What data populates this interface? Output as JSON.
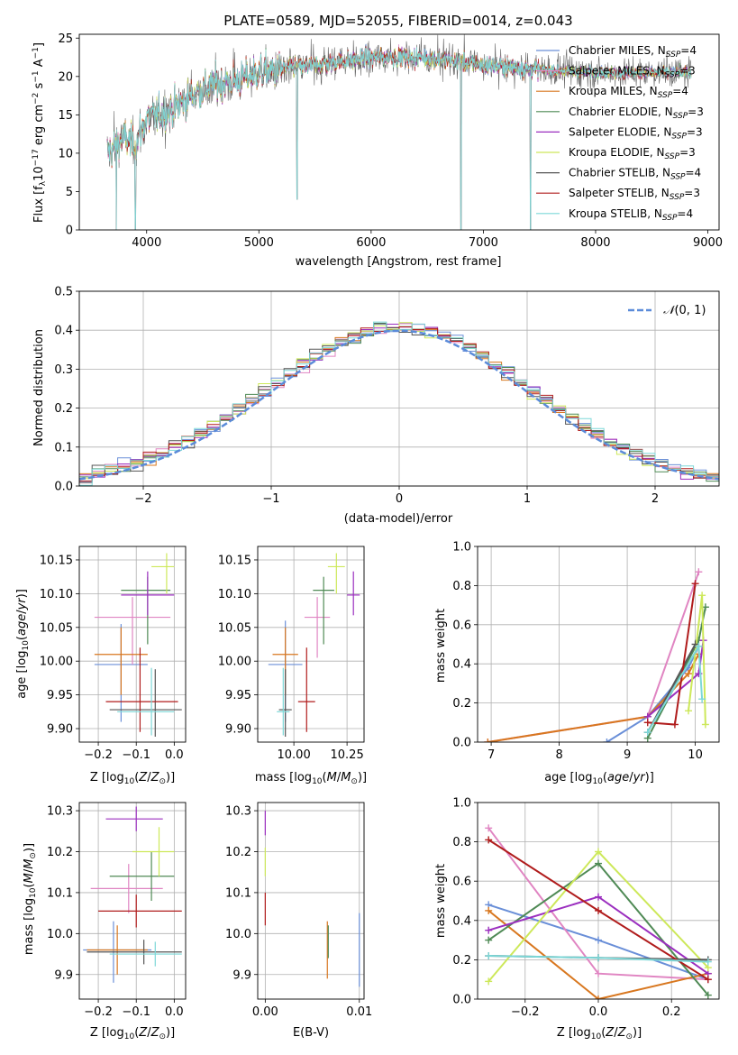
{
  "colors": [
    "#6a8fd8",
    "#e085c2",
    "#d8771f",
    "#4f8a55",
    "#9b2fbf",
    "#cde85a",
    "#555555",
    "#b01c1c",
    "#7dd8d8"
  ],
  "chart_data": [
    {
      "id": "spectrum",
      "type": "line",
      "title": "PLATE=0589, MJD=52055, FIBERID=0014, z=0.043",
      "xlabel": "wavelength [Angstrom, rest frame]",
      "ylabel": "Flux [f_λ10^-17 erg cm^-2 s^-1 A^-1]",
      "xlim": [
        3400,
        9100
      ],
      "ylim": [
        0,
        25.5
      ],
      "xticks": [
        4000,
        5000,
        6000,
        7000,
        8000,
        9000
      ],
      "yticks": [
        0,
        5,
        10,
        15,
        20,
        25
      ],
      "grid": false,
      "legend_position": "right",
      "legend": [
        {
          "label": "Chabrier MILES, N_SSP=4",
          "color": "#6a8fd8"
        },
        {
          "label": "Salpeter MILES, N_SSP=3",
          "color": "#e085c2"
        },
        {
          "label": "Kroupa MILES, N_SSP=4",
          "color": "#d8771f"
        },
        {
          "label": "Chabrier ELODIE, N_SSP=3",
          "color": "#4f8a55"
        },
        {
          "label": "Salpeter ELODIE, N_SSP=3",
          "color": "#9b2fbf"
        },
        {
          "label": "Kroupa ELODIE, N_SSP=3",
          "color": "#cde85a"
        },
        {
          "label": "Chabrier STELIB, N_SSP=4",
          "color": "#555555"
        },
        {
          "label": "Salpeter STELIB, N_SSP=3",
          "color": "#b01c1c"
        },
        {
          "label": "Kroupa STELIB, N_SSP=4",
          "color": "#7dd8d8"
        }
      ],
      "continuum": {
        "x": [
          3650,
          3800,
          3900,
          4000,
          4200,
          4400,
          4600,
          4800,
          5000,
          5200,
          5500,
          6000,
          6500,
          7000,
          7400,
          8000,
          8500,
          8850
        ],
        "y": [
          10,
          12,
          11,
          14.5,
          15.5,
          17.5,
          19,
          19.5,
          20.5,
          21,
          21.5,
          22.5,
          22.5,
          21.5,
          21,
          20.5,
          20.5,
          20.5
        ]
      },
      "data_range": [
        3650,
        8850
      ],
      "absorption_dips": [
        {
          "x": 3730,
          "y": 0
        },
        {
          "x": 3900,
          "y": 0
        },
        {
          "x": 5340,
          "y": 4
        },
        {
          "x": 6800,
          "y": 0
        },
        {
          "x": 7420,
          "y": 0
        }
      ]
    },
    {
      "id": "residuals",
      "type": "histogram",
      "xlabel": "(data-model)/error",
      "ylabel": "Normed distribution",
      "xlim": [
        -2.5,
        2.5
      ],
      "ylim": [
        0,
        0.5
      ],
      "xticks": [
        -2,
        -1,
        0,
        1,
        2
      ],
      "yticks": [
        0,
        0.1,
        0.2,
        0.3,
        0.4,
        0.5
      ],
      "grid": true,
      "bin_width": 0.1,
      "legend": [
        {
          "label": "N(0,1)",
          "color": "#5b8bd9",
          "style": "dashed"
        }
      ],
      "legend_position": "upper right"
    },
    {
      "id": "age-vs-Z",
      "type": "errorbar",
      "xlabel": "Z [log10(Z/Z⊙)]",
      "ylabel": "age  [log10(age/yr)]",
      "xlim": [
        -0.25,
        0.03
      ],
      "ylim": [
        9.88,
        10.17
      ],
      "xticks": [
        -0.2,
        -0.1,
        0.0
      ],
      "yticks": [
        9.9,
        9.95,
        10.0,
        10.05,
        10.1,
        10.15
      ],
      "grid": true,
      "points": [
        {
          "x": -0.14,
          "xerr": [
            0.07,
            0.07
          ],
          "y": 9.995,
          "yerr": [
            0.085,
            0.06
          ],
          "series": 0
        },
        {
          "x": -0.11,
          "xerr": [
            0.1,
            0.1
          ],
          "y": 10.065,
          "yerr": [
            0.07,
            0.03
          ],
          "series": 1
        },
        {
          "x": -0.14,
          "xerr": [
            0.07,
            0.07
          ],
          "y": 10.01,
          "yerr": [
            0.06,
            0.04
          ],
          "series": 2
        },
        {
          "x": -0.07,
          "xerr": [
            0.07,
            0.06
          ],
          "y": 10.105,
          "yerr": [
            0.08,
            0.02
          ],
          "series": 3
        },
        {
          "x": -0.07,
          "xerr": [
            0.07,
            0.07
          ],
          "y": 10.098,
          "yerr": [
            0.03,
            0.035
          ],
          "series": 4
        },
        {
          "x": -0.02,
          "xerr": [
            0.04,
            0.02
          ],
          "y": 10.14,
          "yerr": [
            0.04,
            0.02
          ],
          "series": 5
        },
        {
          "x": -0.05,
          "xerr": [
            0.12,
            0.07
          ],
          "y": 9.928,
          "yerr": [
            0.04,
            0.06
          ],
          "series": 6
        },
        {
          "x": -0.09,
          "xerr": [
            0.09,
            0.1
          ],
          "y": 9.94,
          "yerr": [
            0.045,
            0.08
          ],
          "series": 7
        },
        {
          "x": -0.06,
          "xerr": [
            0.09,
            0.06
          ],
          "y": 9.925,
          "yerr": [
            0.035,
            0.065
          ],
          "series": 8
        }
      ]
    },
    {
      "id": "age-vs-mass",
      "type": "errorbar",
      "xlabel": "mass [log10(M/M⊙)]",
      "xlim": [
        9.83,
        10.33
      ],
      "ylim": [
        9.88,
        10.17
      ],
      "xticks": [
        10.0,
        10.25
      ],
      "yticks": [
        9.9,
        9.95,
        10.0,
        10.05,
        10.1,
        10.15
      ],
      "grid": true,
      "points": [
        {
          "x": 9.96,
          "xerr": [
            0.08,
            0.08
          ],
          "y": 9.995,
          "yerr": [
            0.085,
            0.065
          ],
          "series": 0
        },
        {
          "x": 10.11,
          "xerr": [
            0.06,
            0.06
          ],
          "y": 10.065,
          "yerr": [
            0.06,
            0.03
          ],
          "series": 1
        },
        {
          "x": 9.96,
          "xerr": [
            0.06,
            0.06
          ],
          "y": 10.01,
          "yerr": [
            0.06,
            0.04
          ],
          "series": 2
        },
        {
          "x": 10.14,
          "xerr": [
            0.05,
            0.05
          ],
          "y": 10.105,
          "yerr": [
            0.08,
            0.02
          ],
          "series": 3
        },
        {
          "x": 10.28,
          "xerr": [
            0.03,
            0.03
          ],
          "y": 10.098,
          "yerr": [
            0.03,
            0.035
          ],
          "series": 4
        },
        {
          "x": 10.2,
          "xerr": [
            0.04,
            0.04
          ],
          "y": 10.14,
          "yerr": [
            0.04,
            0.02
          ],
          "series": 5
        },
        {
          "x": 9.96,
          "xerr": [
            0.03,
            0.03
          ],
          "y": 9.928,
          "yerr": [
            0.04,
            0.06
          ],
          "series": 6
        },
        {
          "x": 10.06,
          "xerr": [
            0.04,
            0.04
          ],
          "y": 9.94,
          "yerr": [
            0.045,
            0.08
          ],
          "series": 7
        },
        {
          "x": 9.95,
          "xerr": [
            0.03,
            0.03
          ],
          "y": 9.925,
          "yerr": [
            0.035,
            0.065
          ],
          "series": 8
        }
      ]
    },
    {
      "id": "weight-vs-age",
      "type": "line",
      "xlabel": "age  [log10(age/yr)]",
      "ylabel": "mass weight",
      "xlim": [
        6.8,
        10.35
      ],
      "ylim": [
        0,
        1.0
      ],
      "xticks": [
        7,
        8,
        9,
        10
      ],
      "yticks": [
        0,
        0.2,
        0.4,
        0.6,
        0.8,
        1.0
      ],
      "grid": true,
      "series": [
        {
          "x": [
            8.7,
            9.3,
            9.9,
            10.05
          ],
          "y": [
            0.0,
            0.13,
            0.38,
            0.49
          ],
          "color_index": 0
        },
        {
          "x": [
            6.95,
            9.3,
            10.05
          ],
          "y": [
            0.0,
            0.13,
            0.87
          ],
          "color_index": 1
        },
        {
          "x": [
            6.95,
            9.3,
            9.9,
            10.05
          ],
          "y": [
            0.0,
            0.13,
            0.35,
            0.45
          ],
          "color_index": 2
        },
        {
          "x": [
            9.3,
            10.05,
            10.15
          ],
          "y": [
            0.02,
            0.52,
            0.69
          ],
          "color_index": 3
        },
        {
          "x": [
            9.3,
            10.05,
            10.12
          ],
          "y": [
            0.13,
            0.35,
            0.52
          ],
          "color_index": 4
        },
        {
          "x": [
            9.9,
            10.1,
            10.15
          ],
          "y": [
            0.16,
            0.75,
            0.09
          ],
          "color_index": 5
        },
        {
          "x": [
            9.3,
            10.0
          ],
          "y": [
            0.05,
            0.5
          ],
          "color_index": 6
        },
        {
          "x": [
            9.3,
            9.7,
            10.0
          ],
          "y": [
            0.1,
            0.09,
            0.81
          ],
          "color_index": 7
        },
        {
          "x": [
            9.3,
            10.05,
            10.1
          ],
          "y": [
            0.05,
            0.49,
            0.22
          ],
          "color_index": 8
        }
      ]
    },
    {
      "id": "mass-vs-Z",
      "type": "errorbar",
      "xlabel": "Z [log10(Z/Z⊙)]",
      "ylabel": "mass [log10(M/M⊙)]",
      "xlim": [
        -0.25,
        0.03
      ],
      "ylim": [
        9.84,
        10.32
      ],
      "xticks": [
        -0.2,
        -0.1,
        0.0
      ],
      "yticks": [
        9.9,
        10.0,
        10.1,
        10.2,
        10.3
      ],
      "grid": true,
      "points": [
        {
          "x": -0.16,
          "xerr": [
            0.08,
            0.1
          ],
          "y": 9.96,
          "yerr": [
            0.08,
            0.07
          ],
          "series": 0
        },
        {
          "x": -0.12,
          "xerr": [
            0.1,
            0.09
          ],
          "y": 10.11,
          "yerr": [
            0.06,
            0.06
          ],
          "series": 1
        },
        {
          "x": -0.15,
          "xerr": [
            0.08,
            0.08
          ],
          "y": 9.96,
          "yerr": [
            0.06,
            0.06
          ],
          "series": 2
        },
        {
          "x": -0.06,
          "xerr": [
            0.11,
            0.06
          ],
          "y": 10.14,
          "yerr": [
            0.06,
            0.06
          ],
          "series": 3
        },
        {
          "x": -0.1,
          "xerr": [
            0.08,
            0.07
          ],
          "y": 10.28,
          "yerr": [
            0.03,
            0.03
          ],
          "series": 4
        },
        {
          "x": -0.04,
          "xerr": [
            0.07,
            0.04
          ],
          "y": 10.2,
          "yerr": [
            0.06,
            0.06
          ],
          "series": 5
        },
        {
          "x": -0.08,
          "xerr": [
            0.15,
            0.1
          ],
          "y": 9.955,
          "yerr": [
            0.03,
            0.03
          ],
          "series": 6
        },
        {
          "x": -0.1,
          "xerr": [
            0.1,
            0.12
          ],
          "y": 10.055,
          "yerr": [
            0.04,
            0.04
          ],
          "series": 7
        },
        {
          "x": -0.05,
          "xerr": [
            0.12,
            0.07
          ],
          "y": 9.95,
          "yerr": [
            0.03,
            0.03
          ],
          "series": 8
        }
      ]
    },
    {
      "id": "mass-vs-ebv",
      "type": "errorbar",
      "xlabel": "E(B-V)",
      "xlim": [
        -0.0008,
        0.0105
      ],
      "ylim": [
        9.84,
        10.32
      ],
      "xticks": [
        0.0,
        0.01
      ],
      "yticks": [
        9.9,
        10.0,
        10.1,
        10.2,
        10.3
      ],
      "grid": true,
      "points": [
        {
          "x": 0.0,
          "y": 10.27,
          "yerr": [
            0.03,
            0.03
          ],
          "series": 4
        },
        {
          "x": 0.0,
          "y": 10.18,
          "yerr": [
            0.04,
            0.03
          ],
          "series": 5
        },
        {
          "x": 0.0,
          "y": 10.06,
          "yerr": [
            0.04,
            0.04
          ],
          "series": 7
        },
        {
          "x": 0.0066,
          "y": 9.96,
          "yerr": [
            0.07,
            0.07
          ],
          "series": 2
        },
        {
          "x": 0.0067,
          "y": 9.98,
          "yerr": [
            0.04,
            0.04
          ],
          "series": 3
        },
        {
          "x": 0.01,
          "y": 9.96,
          "yerr": [
            0.09,
            0.09
          ],
          "series": 0
        }
      ]
    },
    {
      "id": "weight-vs-Z",
      "type": "line",
      "xlabel": "Z [log10(Z/Z⊙)]",
      "ylabel": "mass weight",
      "xlim": [
        -0.33,
        0.33
      ],
      "ylim": [
        0,
        1.0
      ],
      "xticks": [
        -0.2,
        0.0,
        0.2
      ],
      "yticks": [
        0,
        0.2,
        0.4,
        0.6,
        0.8,
        1.0
      ],
      "grid": true,
      "series": [
        {
          "x": [
            -0.3,
            0.0,
            0.3
          ],
          "y": [
            0.48,
            0.3,
            0.1
          ],
          "color_index": 0
        },
        {
          "x": [
            -0.3,
            0.0,
            0.3
          ],
          "y": [
            0.87,
            0.13,
            0.1
          ],
          "color_index": 1
        },
        {
          "x": [
            -0.3,
            0.0,
            0.3
          ],
          "y": [
            0.45,
            0.0,
            0.13
          ],
          "color_index": 2
        },
        {
          "x": [
            -0.3,
            0.0,
            0.3
          ],
          "y": [
            0.3,
            0.69,
            0.02
          ],
          "color_index": 3
        },
        {
          "x": [
            -0.3,
            0.0,
            0.3
          ],
          "y": [
            0.35,
            0.52,
            0.13
          ],
          "color_index": 4
        },
        {
          "x": [
            -0.3,
            0.0,
            0.3
          ],
          "y": [
            0.09,
            0.75,
            0.16
          ],
          "color_index": 5
        },
        {
          "x": [
            -0.3,
            0.0,
            0.3
          ],
          "y": [
            0.22,
            0.21,
            0.2
          ],
          "color_index": 6
        },
        {
          "x": [
            -0.3,
            0.0,
            0.3
          ],
          "y": [
            0.81,
            0.45,
            0.1
          ],
          "color_index": 7
        },
        {
          "x": [
            -0.3,
            0.0,
            0.3
          ],
          "y": [
            0.22,
            0.21,
            0.19
          ],
          "color_index": 8
        }
      ]
    }
  ]
}
